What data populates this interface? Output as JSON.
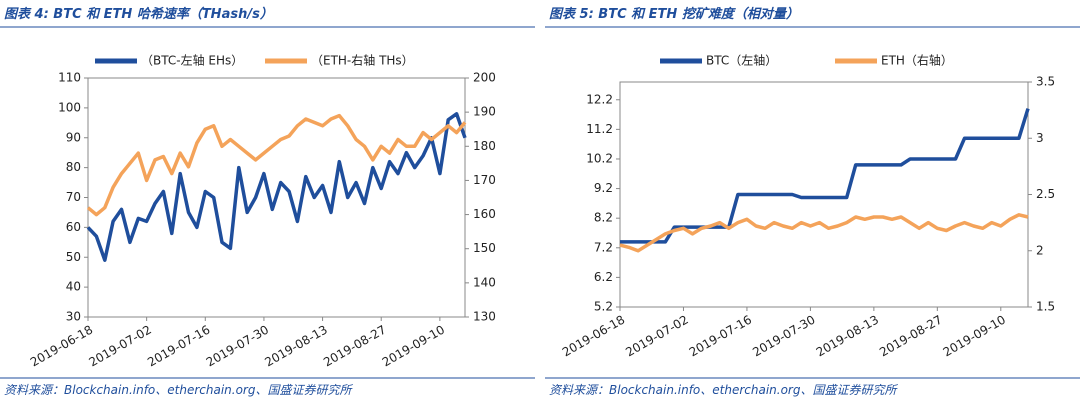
{
  "chart_data": [
    {
      "type": "line",
      "title": "图表 4: BTC 和 ETH 哈希速率（THash/s）",
      "source": "资料来源：Blockchain.info、etherchain.org、国盛证券研究所",
      "categories": [
        "2019-06-18",
        null,
        null,
        null,
        null,
        null,
        null,
        "2019-07-02",
        null,
        null,
        null,
        null,
        null,
        null,
        "2019-07-16",
        null,
        null,
        null,
        null,
        null,
        null,
        "2019-07-30",
        null,
        null,
        null,
        null,
        null,
        null,
        "2019-08-13",
        null,
        null,
        null,
        null,
        null,
        null,
        "2019-08-27",
        null,
        null,
        null,
        null,
        null,
        null,
        "2019-09-10",
        null,
        null,
        null
      ],
      "series": [
        {
          "name": "（BTC-左轴 EHs）",
          "color": "#1f4e9c",
          "values": [
            60,
            57,
            49,
            62,
            66,
            55,
            63,
            62,
            68,
            72,
            58,
            78,
            65,
            60,
            72,
            70,
            55,
            53,
            80,
            65,
            70,
            78,
            66,
            75,
            72,
            62,
            77,
            70,
            74,
            65,
            82,
            70,
            75,
            68,
            80,
            73,
            82,
            78,
            85,
            80,
            84,
            90,
            78,
            96,
            98,
            90
          ]
        },
        {
          "name": "（ETH-右轴 THs）",
          "color": "#f4a35a",
          "axis": "y2",
          "values": [
            162,
            160,
            162,
            168,
            172,
            175,
            178,
            170,
            176,
            177,
            172,
            178,
            174,
            181,
            185,
            186,
            180,
            182,
            180,
            178,
            176,
            178,
            180,
            182,
            183,
            186,
            188,
            187,
            186,
            188,
            189,
            186,
            182,
            180,
            176,
            180,
            178,
            182,
            180,
            180,
            184,
            182,
            184,
            186,
            184,
            187
          ]
        }
      ],
      "ylim": [
        30,
        110
      ],
      "yticks": [
        30,
        40,
        50,
        60,
        70,
        80,
        90,
        100,
        110
      ],
      "y2lim": [
        130,
        200
      ],
      "y2ticks": [
        130,
        140,
        150,
        160,
        170,
        180,
        190,
        200
      ]
    },
    {
      "type": "line",
      "title": "图表 5: BTC 和 ETH 挖矿难度（相对量）",
      "source": "资料来源：Blockchain.info、etherchain.org、国盛证券研究所",
      "categories": [
        "2019-06-18",
        null,
        null,
        null,
        null,
        null,
        null,
        "2019-07-02",
        null,
        null,
        null,
        null,
        null,
        null,
        "2019-07-16",
        null,
        null,
        null,
        null,
        null,
        null,
        "2019-07-30",
        null,
        null,
        null,
        null,
        null,
        null,
        "2019-08-13",
        null,
        null,
        null,
        null,
        null,
        null,
        "2019-08-27",
        null,
        null,
        null,
        null,
        null,
        null,
        "2019-09-10",
        null,
        null,
        null
      ],
      "series": [
        {
          "name": "BTC（左轴）",
          "color": "#1f4e9c",
          "values": [
            7.4,
            7.4,
            7.4,
            7.4,
            7.4,
            7.4,
            7.9,
            7.9,
            7.9,
            7.9,
            7.9,
            7.9,
            7.9,
            9.0,
            9.0,
            9.0,
            9.0,
            9.0,
            9.0,
            9.0,
            8.9,
            8.9,
            8.9,
            8.9,
            8.9,
            8.9,
            10.0,
            10.0,
            10.0,
            10.0,
            10.0,
            10.0,
            10.2,
            10.2,
            10.2,
            10.2,
            10.2,
            10.2,
            10.9,
            10.9,
            10.9,
            10.9,
            10.9,
            10.9,
            10.9,
            11.9
          ]
        },
        {
          "name": "ETH（右轴）",
          "color": "#f4a35a",
          "axis": "y2",
          "values": [
            2.05,
            2.03,
            2.0,
            2.05,
            2.1,
            2.15,
            2.18,
            2.2,
            2.15,
            2.2,
            2.22,
            2.25,
            2.2,
            2.25,
            2.28,
            2.22,
            2.2,
            2.25,
            2.22,
            2.2,
            2.25,
            2.22,
            2.25,
            2.2,
            2.22,
            2.25,
            2.3,
            2.28,
            2.3,
            2.3,
            2.28,
            2.3,
            2.25,
            2.2,
            2.25,
            2.2,
            2.18,
            2.22,
            2.25,
            2.22,
            2.2,
            2.25,
            2.22,
            2.28,
            2.32,
            2.3
          ]
        }
      ],
      "ylim": [
        5.2,
        12.8
      ],
      "yticks": [
        5.2,
        6.2,
        7.2,
        8.2,
        9.2,
        10.2,
        11.2,
        12.2
      ],
      "y2lim": [
        1.5,
        3.5
      ],
      "y2ticks": [
        1.5,
        2,
        2.5,
        3,
        3.5
      ]
    }
  ]
}
